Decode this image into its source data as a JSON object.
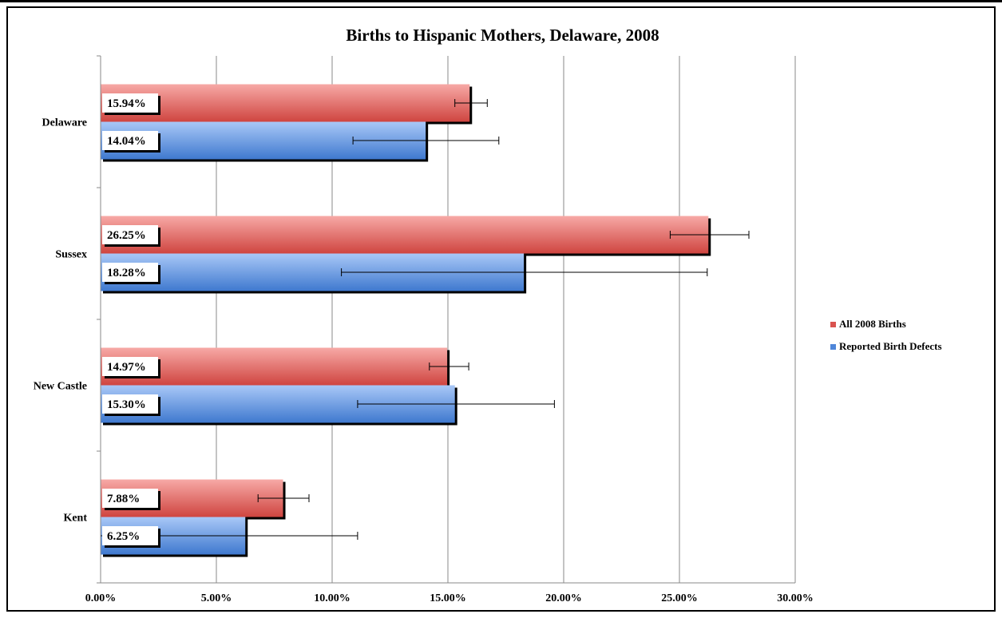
{
  "chart_data": {
    "type": "bar",
    "orientation": "horizontal",
    "title": "Births to Hispanic Mothers, Delaware, 2008",
    "categories": [
      "Delaware",
      "Sussex",
      "New Castle",
      "Kent"
    ],
    "series": [
      {
        "name": "All 2008 Births",
        "color": "#d9534f",
        "values": [
          15.94,
          26.25,
          14.97,
          7.88
        ],
        "labels": [
          "15.94%",
          "26.25%",
          "14.97%",
          "7.88%"
        ],
        "error_low": [
          15.3,
          24.6,
          14.2,
          6.8
        ],
        "error_high": [
          16.7,
          28.0,
          15.9,
          9.0
        ]
      },
      {
        "name": "Reported Birth Defects",
        "color": "#4f86d9",
        "values": [
          14.04,
          18.28,
          15.3,
          6.25
        ],
        "labels": [
          "14.04%",
          "18.28%",
          "15.30%",
          "6.25%"
        ],
        "error_low": [
          10.9,
          10.4,
          11.1,
          0.0
        ],
        "error_high": [
          17.2,
          26.2,
          19.6,
          11.1
        ]
      }
    ],
    "xlim": [
      0,
      30
    ],
    "xticks": [
      "0.00%",
      "5.00%",
      "10.00%",
      "15.00%",
      "20.00%",
      "25.00%",
      "30.00%"
    ],
    "grid": true,
    "legend_position": "right"
  }
}
